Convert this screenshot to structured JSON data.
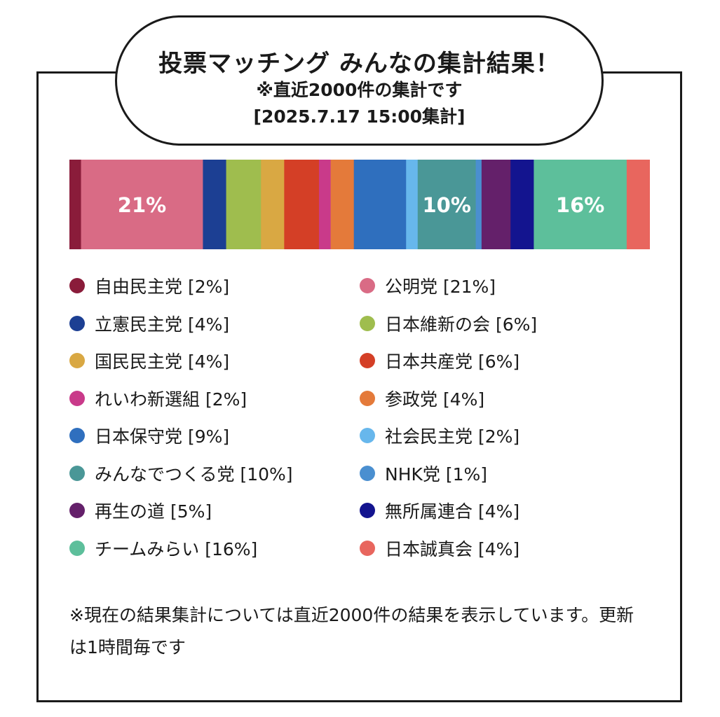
{
  "header": {
    "title": "投票マッチング みんなの集計結果！",
    "subtitle": "※直近2000件の集計です",
    "date": "[2025.7.17 15:00集計]"
  },
  "chart_data": {
    "type": "bar",
    "orientation": "horizontal-stacked",
    "unit": "%",
    "categories": [
      "自由民主党",
      "公明党",
      "立憲民主党",
      "日本維新の会",
      "国民民主党",
      "日本共産党",
      "れいわ新選組",
      "参政党",
      "日本保守党",
      "社会民主党",
      "みんなでつくる党",
      "NHK党",
      "再生の道",
      "無所属連合",
      "チームみらい",
      "日本誠真会"
    ],
    "values": [
      2,
      21,
      4,
      6,
      4,
      6,
      2,
      4,
      9,
      2,
      10,
      1,
      5,
      4,
      16,
      4
    ],
    "colors": [
      "#8a1c3a",
      "#d96b85",
      "#1c3f93",
      "#9fbd4e",
      "#d9a843",
      "#d43f26",
      "#c93a8a",
      "#e47a3a",
      "#2f6fbe",
      "#67b7ec",
      "#4a9797",
      "#4a8fd0",
      "#64206a",
      "#13148f",
      "#5dbf9b",
      "#e8665e"
    ],
    "data_labels": {
      "公明党": "21%",
      "みんなでつくる党": "10%",
      "チームみらい": "16%"
    },
    "legend": [
      {
        "label": "自由民主党 [2%]",
        "color": "#8a1c3a"
      },
      {
        "label": "公明党 [21%]",
        "color": "#d96b85"
      },
      {
        "label": "立憲民主党 [4%]",
        "color": "#1c3f93"
      },
      {
        "label": "日本維新の会 [6%]",
        "color": "#9fbd4e"
      },
      {
        "label": "国民民主党 [4%]",
        "color": "#d9a843"
      },
      {
        "label": "日本共産党 [6%]",
        "color": "#d43f26"
      },
      {
        "label": "れいわ新選組 [2%]",
        "color": "#c93a8a"
      },
      {
        "label": "参政党 [4%]",
        "color": "#e47a3a"
      },
      {
        "label": "日本保守党 [9%]",
        "color": "#2f6fbe"
      },
      {
        "label": "社会民主党 [2%]",
        "color": "#67b7ec"
      },
      {
        "label": "みんなでつくる党 [10%]",
        "color": "#4a9797"
      },
      {
        "label": "NHK党 [1%]",
        "color": "#4a8fd0"
      },
      {
        "label": "再生の道 [5%]",
        "color": "#64206a"
      },
      {
        "label": "無所属連合 [4%]",
        "color": "#13148f"
      },
      {
        "label": "チームみらい [16%]",
        "color": "#5dbf9b"
      },
      {
        "label": "日本誠真会 [4%]",
        "color": "#e8665e"
      }
    ]
  },
  "footnote": "※現在の結果集計については直近2000件の結果を表示しています。更新は1時間毎です"
}
